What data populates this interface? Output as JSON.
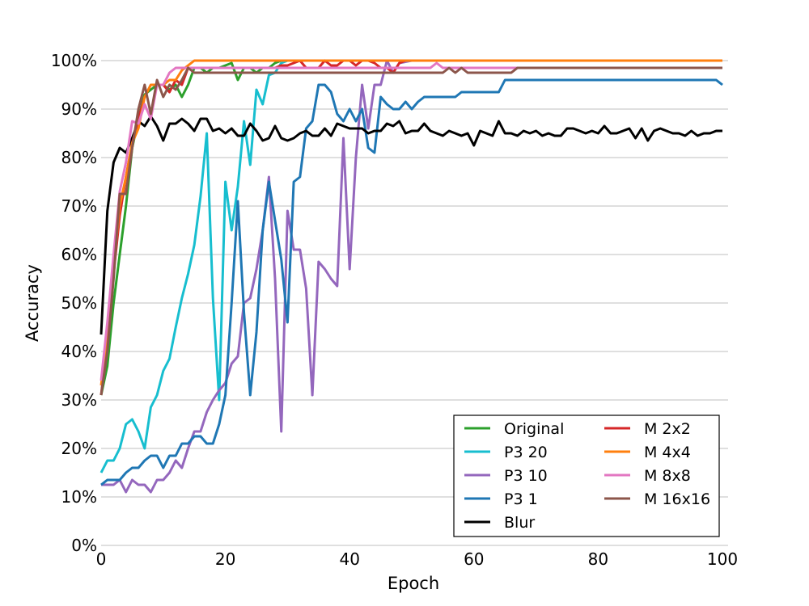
{
  "chart_data": {
    "type": "line",
    "title": "",
    "xlabel": "Epoch",
    "ylabel": "Accuracy",
    "xlim": [
      0,
      100
    ],
    "ylim": [
      0,
      100
    ],
    "x_ticks": [
      "0",
      "20",
      "40",
      "60",
      "80",
      "100"
    ],
    "y_ticks": [
      "0%",
      "10%",
      "20%",
      "30%",
      "40%",
      "50%",
      "60%",
      "70%",
      "80%",
      "90%",
      "100%"
    ],
    "grid": "horizontal",
    "legend_position": "bottom-right",
    "legend_columns": 2,
    "series": [
      {
        "name": "Original",
        "color": "#2ca02c",
        "x": [
          0,
          1,
          2,
          3,
          4,
          5,
          6,
          7,
          8,
          9,
          10,
          11,
          12,
          13,
          14,
          15,
          16,
          17,
          18,
          19,
          20,
          21,
          22,
          23,
          24,
          25,
          26,
          27,
          28,
          29,
          30,
          35,
          40,
          45,
          50,
          55,
          60,
          65,
          70,
          75,
          80,
          85,
          90,
          95,
          100
        ],
        "y": [
          31,
          37,
          50,
          60,
          70,
          82,
          88,
          93,
          94,
          95,
          95,
          94,
          95,
          92.5,
          95,
          98.5,
          98.5,
          97.5,
          98.5,
          98.5,
          99,
          99.5,
          96,
          98.5,
          98.5,
          97.5,
          98.5,
          98.5,
          99.5,
          100,
          100,
          100,
          100,
          100,
          100,
          100,
          100,
          100,
          100,
          100,
          100,
          100,
          100,
          100,
          100
        ]
      },
      {
        "name": "P3 20",
        "color": "#17becf",
        "x": [
          0,
          1,
          2,
          3,
          4,
          5,
          6,
          7,
          8,
          9,
          10,
          11,
          12,
          13,
          14,
          15,
          16,
          17,
          18,
          19,
          20,
          21,
          22,
          23,
          24,
          25,
          26,
          27,
          28,
          29,
          30,
          35,
          40,
          45,
          50,
          55,
          60,
          65,
          70,
          75,
          80,
          85,
          90,
          95,
          100
        ],
        "y": [
          15,
          17.5,
          17.5,
          20,
          25,
          26,
          23.5,
          20,
          28.5,
          31,
          36,
          38.5,
          45,
          51,
          56,
          62,
          72,
          85,
          51,
          30,
          75,
          65,
          74,
          87.5,
          78.5,
          94,
          91,
          97,
          97.5,
          99.5,
          100,
          100,
          100,
          100,
          100,
          100,
          100,
          100,
          100,
          100,
          100,
          100,
          100,
          100,
          100
        ]
      },
      {
        "name": "P3 10",
        "color": "#9467bd",
        "x": [
          0,
          1,
          2,
          3,
          4,
          5,
          6,
          7,
          8,
          9,
          10,
          11,
          12,
          13,
          14,
          15,
          16,
          17,
          18,
          19,
          20,
          21,
          22,
          23,
          24,
          25,
          26,
          27,
          28,
          29,
          30,
          31,
          32,
          33,
          34,
          35,
          36,
          37,
          38,
          39,
          40,
          41,
          42,
          43,
          44,
          45,
          46,
          47,
          48,
          50,
          55,
          60,
          65,
          70,
          75,
          80,
          85,
          90,
          95,
          100
        ],
        "y": [
          12.5,
          12.5,
          12.5,
          13.5,
          11,
          13.5,
          12.5,
          12.5,
          11,
          13.5,
          13.5,
          15,
          17.5,
          16,
          20,
          23.5,
          23.5,
          27.5,
          30,
          32,
          33.5,
          37.5,
          39,
          50,
          51,
          57,
          65,
          76,
          55,
          23.5,
          69,
          61,
          61,
          53,
          31,
          58.5,
          57,
          55,
          53.5,
          84,
          57,
          80,
          95,
          86,
          95,
          95,
          100,
          97.5,
          99.5,
          100,
          100,
          100,
          100,
          100,
          100,
          100,
          100,
          100,
          100,
          100
        ]
      },
      {
        "name": "P3 1",
        "color": "#1f77b4",
        "x": [
          0,
          1,
          2,
          3,
          4,
          5,
          6,
          7,
          8,
          9,
          10,
          11,
          12,
          13,
          14,
          15,
          16,
          17,
          18,
          19,
          20,
          21,
          22,
          23,
          24,
          25,
          26,
          27,
          28,
          29,
          30,
          31,
          32,
          33,
          34,
          35,
          36,
          37,
          38,
          39,
          40,
          41,
          42,
          43,
          44,
          45,
          46,
          47,
          48,
          49,
          50,
          51,
          52,
          53,
          54,
          55,
          56,
          57,
          58,
          59,
          60,
          61,
          62,
          63,
          64,
          65,
          66,
          67,
          68,
          70,
          75,
          80,
          85,
          90,
          95,
          99,
          100
        ],
        "y": [
          12.5,
          13.5,
          13.5,
          13.5,
          15,
          16,
          16,
          17.5,
          18.5,
          18.5,
          16,
          18.5,
          18.5,
          21,
          21,
          22.5,
          22.5,
          21,
          21,
          25,
          31,
          50,
          71,
          48,
          31,
          44,
          65,
          75,
          67,
          59,
          46,
          75,
          76,
          86,
          87.5,
          95,
          95,
          93.5,
          89,
          87.5,
          90,
          87.5,
          90,
          82,
          81,
          92.5,
          91,
          90,
          90,
          91.5,
          90,
          91.5,
          92.5,
          92.5,
          92.5,
          92.5,
          92.5,
          92.5,
          93.5,
          93.5,
          93.5,
          93.5,
          93.5,
          93.5,
          93.5,
          96,
          96,
          96,
          96,
          96,
          96,
          96,
          96,
          96,
          96,
          96,
          95
        ]
      },
      {
        "name": "Blur",
        "color": "#000000",
        "x": [
          0,
          1,
          2,
          3,
          4,
          5,
          6,
          7,
          8,
          9,
          10,
          11,
          12,
          13,
          14,
          15,
          16,
          17,
          18,
          19,
          20,
          21,
          22,
          23,
          24,
          25,
          26,
          27,
          28,
          29,
          30,
          31,
          32,
          33,
          34,
          35,
          36,
          37,
          38,
          39,
          40,
          41,
          42,
          43,
          44,
          45,
          46,
          47,
          48,
          49,
          50,
          51,
          52,
          53,
          54,
          55,
          56,
          57,
          58,
          59,
          60,
          61,
          62,
          63,
          64,
          65,
          66,
          67,
          68,
          69,
          70,
          71,
          72,
          73,
          74,
          75,
          76,
          77,
          78,
          79,
          80,
          81,
          82,
          83,
          84,
          85,
          86,
          87,
          88,
          89,
          90,
          91,
          92,
          93,
          94,
          95,
          96,
          97,
          98,
          99,
          100
        ],
        "y": [
          43.5,
          69,
          79,
          82,
          81,
          84,
          87.5,
          86.5,
          88.5,
          86.5,
          83.5,
          87,
          87,
          88,
          87,
          85.5,
          88,
          88,
          85.5,
          86,
          85,
          86,
          84.5,
          84.5,
          87,
          85.5,
          83.5,
          84,
          86.5,
          84,
          83.5,
          84,
          85,
          85.5,
          84.5,
          84.5,
          86,
          84.5,
          87,
          86.5,
          86,
          86,
          86,
          85,
          85.5,
          85.5,
          87,
          86.5,
          87.5,
          85,
          85.5,
          85.5,
          87,
          85.5,
          85,
          84.5,
          85.5,
          85,
          84.5,
          85,
          82.5,
          85.5,
          85,
          84.5,
          87.5,
          85,
          85,
          84.5,
          85.5,
          85,
          85.5,
          84.5,
          85,
          84.5,
          84.5,
          86,
          86,
          85.5,
          85,
          85.5,
          85,
          86.5,
          85,
          85,
          85.5,
          86,
          84,
          86,
          83.5,
          85.5,
          86,
          85.5,
          85,
          85,
          84.5,
          85.5,
          84.5,
          85,
          85,
          85.5,
          85.5
        ]
      },
      {
        "name": "M 2x2",
        "color": "#d62728",
        "x": [
          0,
          1,
          2,
          3,
          4,
          5,
          6,
          7,
          8,
          9,
          10,
          11,
          12,
          13,
          14,
          15,
          16,
          17,
          18,
          19,
          20,
          25,
          28,
          29,
          30,
          31,
          32,
          33,
          34,
          35,
          36,
          37,
          38,
          39,
          40,
          41,
          42,
          43,
          44,
          45,
          46,
          47,
          48,
          49,
          50,
          60,
          70,
          80,
          90,
          100
        ],
        "y": [
          31,
          42,
          56,
          68,
          76,
          83,
          88,
          92.5,
          95,
          95,
          95,
          93.5,
          96,
          95,
          98.5,
          98.5,
          98.5,
          98.5,
          98.5,
          98.5,
          98.5,
          98.5,
          98.5,
          99,
          99,
          99.5,
          100,
          98.5,
          98.5,
          98.5,
          100,
          99,
          99,
          100,
          100,
          99,
          100,
          100,
          99.5,
          98.5,
          98.5,
          97.5,
          99.5,
          100,
          100,
          100,
          100,
          100,
          100,
          100
        ]
      },
      {
        "name": "M 4x4",
        "color": "#ff7f0e",
        "x": [
          0,
          1,
          2,
          3,
          4,
          5,
          6,
          7,
          8,
          9,
          10,
          11,
          12,
          13,
          14,
          15,
          20,
          40,
          60,
          80,
          100
        ],
        "y": [
          33,
          43,
          57,
          70,
          76,
          83,
          86,
          92.5,
          95,
          95,
          95,
          96,
          96,
          98,
          99,
          100,
          100,
          100,
          100,
          100,
          100
        ]
      },
      {
        "name": "M 8x8",
        "color": "#e377c2",
        "x": [
          0,
          1,
          2,
          3,
          4,
          5,
          6,
          7,
          8,
          9,
          10,
          11,
          12,
          13,
          14,
          15,
          16,
          17,
          18,
          19,
          20,
          25,
          30,
          35,
          40,
          45,
          50,
          53,
          54,
          55,
          56,
          57,
          60,
          65,
          70,
          80,
          90,
          100
        ],
        "y": [
          34,
          46,
          60,
          73,
          79,
          87.5,
          87,
          91,
          88,
          95,
          95,
          97.5,
          98.5,
          98.5,
          98.5,
          98.5,
          98.5,
          98.5,
          98.5,
          98.5,
          98.5,
          98.5,
          98.5,
          98.5,
          98.5,
          98.5,
          98.5,
          98.5,
          99.5,
          98.5,
          98.5,
          98.5,
          98.5,
          98.5,
          98.5,
          98.5,
          98.5,
          98.5
        ]
      },
      {
        "name": "M 16x16",
        "color": "#8c564b",
        "x": [
          0,
          1,
          2,
          3,
          4,
          5,
          6,
          7,
          8,
          9,
          10,
          11,
          12,
          13,
          14,
          15,
          16,
          17,
          18,
          19,
          20,
          25,
          30,
          35,
          40,
          45,
          50,
          55,
          56,
          57,
          58,
          59,
          60,
          65,
          66,
          67,
          68,
          70,
          80,
          90,
          100
        ],
        "y": [
          31,
          40,
          55,
          72.5,
          72.5,
          82,
          90,
          95,
          89,
          96,
          92.5,
          95,
          94,
          96,
          98.5,
          97.5,
          97.5,
          97.5,
          97.5,
          97.5,
          97.5,
          97.5,
          97.5,
          97.5,
          97.5,
          97.5,
          97.5,
          97.5,
          98.5,
          97.5,
          98.5,
          97.5,
          97.5,
          97.5,
          97.5,
          98.5,
          98.5,
          98.5,
          98.5,
          98.5,
          98.5
        ]
      }
    ]
  }
}
